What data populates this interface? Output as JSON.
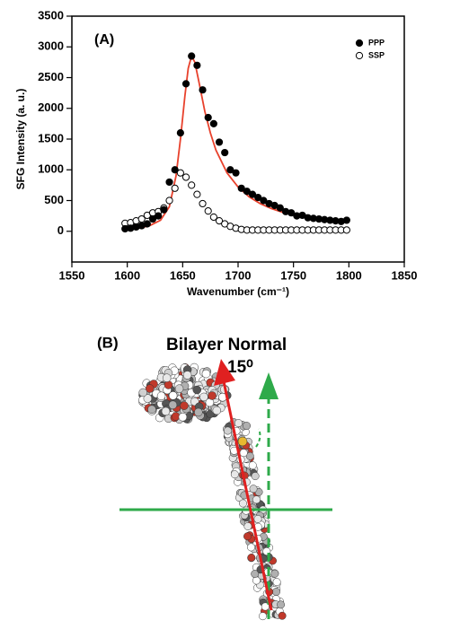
{
  "chart_data": {
    "type": "scatter",
    "panel_label": "(A)",
    "x_label": "Wavenumber (cm⁻¹)",
    "y_label": "SFG Intensity (a. u.)",
    "x": [
      1598,
      1603,
      1608,
      1613,
      1618,
      1623,
      1628,
      1633,
      1638,
      1643,
      1648,
      1653,
      1658,
      1663,
      1668,
      1673,
      1678,
      1683,
      1688,
      1693,
      1698,
      1703,
      1708,
      1713,
      1718,
      1723,
      1728,
      1733,
      1738,
      1743,
      1748,
      1753,
      1758,
      1763,
      1768,
      1773,
      1778,
      1783,
      1788,
      1793,
      1798
    ],
    "series": [
      {
        "name": "PPP",
        "color": "#000000",
        "filled": true,
        "values": [
          40,
          50,
          70,
          90,
          120,
          200,
          250,
          350,
          800,
          1000,
          1600,
          2400,
          2850,
          2700,
          2300,
          1850,
          1750,
          1450,
          1280,
          1000,
          950,
          700,
          650,
          600,
          550,
          500,
          450,
          420,
          380,
          320,
          300,
          250,
          260,
          220,
          210,
          200,
          190,
          180,
          170,
          160,
          180
        ]
      },
      {
        "name": "SSP",
        "color": "#000000",
        "filled": false,
        "values": [
          130,
          140,
          170,
          200,
          260,
          300,
          320,
          380,
          500,
          700,
          950,
          880,
          750,
          600,
          450,
          330,
          230,
          170,
          120,
          80,
          50,
          30,
          20,
          20,
          20,
          20,
          20,
          20,
          20,
          20,
          20,
          20,
          20,
          20,
          20,
          20,
          20,
          20,
          20,
          20,
          20
        ]
      }
    ],
    "fit": {
      "color": "#e8412c",
      "x": [
        1598,
        1610,
        1620,
        1630,
        1638,
        1644,
        1648,
        1652,
        1655,
        1658,
        1661,
        1665,
        1670,
        1675,
        1680,
        1690,
        1700,
        1710,
        1720,
        1730,
        1740,
        1750,
        1760,
        1770,
        1780,
        1790,
        1798
      ],
      "values": [
        30,
        50,
        90,
        180,
        400,
        900,
        1500,
        2200,
        2650,
        2850,
        2750,
        2400,
        1950,
        1600,
        1320,
        950,
        720,
        560,
        450,
        370,
        310,
        270,
        230,
        200,
        180,
        160,
        150
      ]
    },
    "xlim": [
      1550,
      1850
    ],
    "xticks": [
      1550,
      1600,
      1650,
      1700,
      1750,
      1800,
      1850
    ],
    "ylim": [
      -500,
      3500
    ],
    "yticks": [
      0,
      500,
      1000,
      1500,
      2000,
      2500,
      3000,
      3500
    ],
    "legend": "upper right"
  },
  "panel_b": {
    "label": "(B)",
    "title": "Bilayer Normal",
    "angle": "15⁰"
  }
}
